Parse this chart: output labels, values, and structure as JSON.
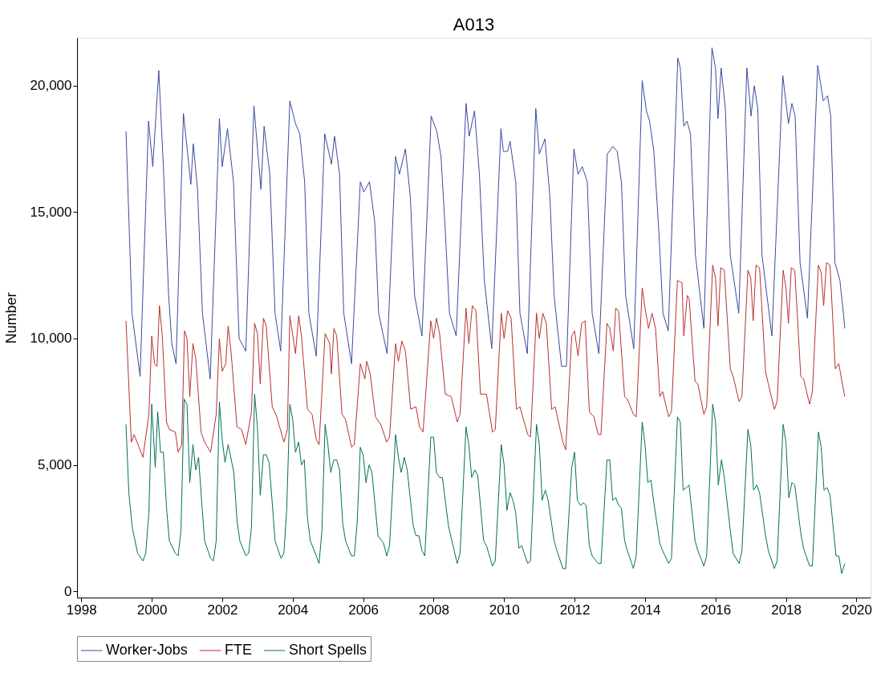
{
  "chart_data": {
    "type": "line",
    "title": "A013",
    "ylabel": "Number",
    "legend": "bottom",
    "grid": false,
    "xlim": [
      1997.88,
      2020.4
    ],
    "xticks": [
      1998,
      2000,
      2002,
      2004,
      2006,
      2008,
      2010,
      2012,
      2014,
      2016,
      2018,
      2020
    ],
    "ylim": [
      -250,
      21900
    ],
    "yticks": [
      0,
      {
        "value": 5000,
        "label": "5,000"
      },
      {
        "value": 10000,
        "label": "10,000"
      },
      {
        "value": 15000,
        "label": "15,000"
      },
      {
        "value": 20000,
        "label": "20,000"
      }
    ],
    "series": [
      {
        "name": "Worker-Jobs",
        "color": "#3b4a9c",
        "x": [
          1999.27,
          1999.44,
          1999.67,
          1999.91,
          2000.03,
          2000.2,
          2000.33,
          2000.48,
          2000.57,
          2000.69,
          2000.9,
          2001.11,
          2001.18,
          2001.3,
          2001.44,
          2001.66,
          2001.92,
          2002.0,
          2002.15,
          2002.32,
          2002.48,
          2002.67,
          2002.9,
          2003.1,
          2003.19,
          2003.35,
          2003.5,
          2003.66,
          2003.92,
          2004.08,
          2004.2,
          2004.34,
          2004.46,
          2004.67,
          2004.91,
          2005.1,
          2005.19,
          2005.33,
          2005.45,
          2005.67,
          2005.92,
          2006.02,
          2006.18,
          2006.33,
          2006.44,
          2006.68,
          2006.92,
          2007.03,
          2007.2,
          2007.34,
          2007.46,
          2007.67,
          2007.93,
          2008.09,
          2008.21,
          2008.33,
          2008.45,
          2008.64,
          2008.92,
          2009.01,
          2009.16,
          2009.3,
          2009.44,
          2009.65,
          2009.91,
          2009.98,
          2010.1,
          2010.17,
          2010.33,
          2010.45,
          2010.66,
          2010.9,
          2011.0,
          2011.16,
          2011.3,
          2011.42,
          2011.63,
          2011.77,
          2011.98,
          2012.1,
          2012.22,
          2012.36,
          2012.5,
          2012.69,
          2012.93,
          2013.09,
          2013.21,
          2013.33,
          2013.45,
          2013.68,
          2013.92,
          2014.04,
          2014.13,
          2014.25,
          2014.39,
          2014.51,
          2014.66,
          2014.93,
          2015.0,
          2015.1,
          2015.19,
          2015.29,
          2015.43,
          2015.67,
          2015.9,
          2016.0,
          2016.07,
          2016.16,
          2016.28,
          2016.42,
          2016.66,
          2016.89,
          2017.01,
          2017.1,
          2017.2,
          2017.32,
          2017.6,
          2017.91,
          2018.07,
          2018.17,
          2018.26,
          2018.4,
          2018.61,
          2018.9,
          2019.06,
          2019.18,
          2019.27,
          2019.39,
          2019.53,
          2019.63,
          2019.67
        ],
        "values": [
          18200,
          11000,
          8500,
          18600,
          16800,
          20600,
          16800,
          11700,
          9800,
          9000,
          18900,
          16100,
          17700,
          15900,
          11000,
          8400,
          18700,
          16800,
          18300,
          16200,
          10000,
          9500,
          19200,
          15900,
          18400,
          16500,
          11000,
          9500,
          19400,
          18500,
          18100,
          16200,
          11000,
          9300,
          18100,
          16900,
          18000,
          16500,
          11000,
          9000,
          16200,
          15800,
          16200,
          14600,
          11000,
          9400,
          17200,
          16500,
          17500,
          15600,
          11700,
          10100,
          18800,
          18200,
          17200,
          14300,
          11000,
          10100,
          19300,
          18000,
          19000,
          16500,
          12300,
          9600,
          18300,
          17400,
          17400,
          17800,
          16200,
          11000,
          9400,
          19100,
          17300,
          17900,
          15600,
          11700,
          8900,
          8900,
          17500,
          16500,
          16800,
          16200,
          11000,
          9400,
          17300,
          17600,
          17400,
          16200,
          11700,
          9600,
          20200,
          19000,
          18600,
          17400,
          14300,
          11000,
          10300,
          21100,
          20700,
          18400,
          18600,
          18100,
          13300,
          10400,
          21500,
          20700,
          18700,
          20700,
          19100,
          13300,
          11000,
          20700,
          18800,
          20000,
          19100,
          13300,
          10100,
          20400,
          18500,
          19300,
          18800,
          13000,
          10800,
          20800,
          19400,
          19600,
          18800,
          13000,
          12300,
          11000,
          10400
        ]
      },
      {
        "name": "FTE",
        "color": "#b8312f",
        "x": [
          1999.27,
          1999.42,
          1999.5,
          1999.75,
          1999.92,
          2000.0,
          2000.08,
          2000.15,
          2000.22,
          2000.3,
          2000.42,
          2000.5,
          2000.67,
          2000.75,
          2000.85,
          2000.93,
          2001.0,
          2001.08,
          2001.17,
          2001.25,
          2001.4,
          2001.5,
          2001.67,
          2001.83,
          2001.92,
          2002.0,
          2002.1,
          2002.17,
          2002.25,
          2002.42,
          2002.55,
          2002.67,
          2002.83,
          2002.92,
          2003.0,
          2003.08,
          2003.17,
          2003.25,
          2003.42,
          2003.55,
          2003.75,
          2003.85,
          2003.92,
          2004.08,
          2004.17,
          2004.25,
          2004.42,
          2004.55,
          2004.67,
          2004.75,
          2004.92,
          2005.05,
          2005.1,
          2005.17,
          2005.25,
          2005.4,
          2005.5,
          2005.67,
          2005.75,
          2005.92,
          2006.05,
          2006.1,
          2006.2,
          2006.35,
          2006.5,
          2006.67,
          2006.75,
          2006.92,
          2007.0,
          2007.1,
          2007.2,
          2007.35,
          2007.5,
          2007.6,
          2007.7,
          2007.92,
          2008.0,
          2008.08,
          2008.17,
          2008.33,
          2008.5,
          2008.67,
          2008.75,
          2008.92,
          2009.0,
          2009.1,
          2009.2,
          2009.33,
          2009.5,
          2009.67,
          2009.75,
          2009.92,
          2010.0,
          2010.1,
          2010.2,
          2010.35,
          2010.45,
          2010.67,
          2010.75,
          2010.92,
          2011.0,
          2011.1,
          2011.2,
          2011.35,
          2011.45,
          2011.67,
          2011.75,
          2011.92,
          2012.0,
          2012.1,
          2012.2,
          2012.3,
          2012.42,
          2012.55,
          2012.67,
          2012.75,
          2012.92,
          2013.0,
          2013.1,
          2013.17,
          2013.25,
          2013.42,
          2013.5,
          2013.67,
          2013.75,
          2013.92,
          2014.0,
          2014.1,
          2014.2,
          2014.3,
          2014.42,
          2014.5,
          2014.67,
          2014.75,
          2014.92,
          2015.05,
          2015.1,
          2015.2,
          2015.25,
          2015.42,
          2015.5,
          2015.67,
          2015.75,
          2015.92,
          2016.0,
          2016.07,
          2016.15,
          2016.25,
          2016.42,
          2016.5,
          2016.67,
          2016.75,
          2016.92,
          2017.0,
          2017.07,
          2017.15,
          2017.25,
          2017.42,
          2017.5,
          2017.67,
          2017.75,
          2017.92,
          2018.0,
          2018.07,
          2018.15,
          2018.25,
          2018.42,
          2018.5,
          2018.67,
          2018.75,
          2018.92,
          2019.0,
          2019.07,
          2019.15,
          2019.25,
          2019.4,
          2019.5,
          2019.6,
          2019.67
        ],
        "values": [
          10700,
          5900,
          6200,
          5300,
          7000,
          10100,
          9000,
          8900,
          11300,
          10100,
          6700,
          6400,
          6300,
          5500,
          5800,
          10300,
          10000,
          7700,
          9800,
          9200,
          6300,
          5900,
          5500,
          7000,
          10000,
          8700,
          9000,
          10500,
          9500,
          6500,
          6400,
          5800,
          7100,
          10600,
          10200,
          8200,
          10800,
          10500,
          7300,
          6900,
          5900,
          6400,
          10900,
          9400,
          10900,
          10100,
          7200,
          7000,
          6000,
          5800,
          10200,
          9800,
          8600,
          10400,
          10100,
          7000,
          6800,
          5700,
          5800,
          9000,
          8400,
          9100,
          8600,
          6900,
          6600,
          5900,
          6100,
          9800,
          9100,
          9900,
          9500,
          7200,
          7300,
          6500,
          6300,
          10700,
          10000,
          10800,
          10200,
          7800,
          7700,
          6700,
          7000,
          11200,
          9800,
          11300,
          11100,
          7800,
          7800,
          6300,
          6400,
          11000,
          10000,
          11100,
          10800,
          7200,
          7300,
          6200,
          6100,
          11000,
          10000,
          11000,
          10600,
          7200,
          7300,
          5900,
          5600,
          10100,
          10300,
          9300,
          10600,
          10700,
          7100,
          6900,
          6200,
          6200,
          10600,
          10400,
          9500,
          11200,
          11100,
          7700,
          7600,
          7000,
          6900,
          12000,
          11200,
          10400,
          11000,
          10400,
          7700,
          7900,
          6900,
          7100,
          12300,
          12200,
          10100,
          11700,
          11600,
          8300,
          8200,
          7000,
          7300,
          12900,
          12400,
          10500,
          12800,
          12700,
          8800,
          8500,
          7500,
          7700,
          12700,
          12400,
          10700,
          12900,
          12800,
          8700,
          8200,
          7200,
          7500,
          12700,
          12000,
          10600,
          12800,
          12700,
          8500,
          8400,
          7400,
          7900,
          12900,
          12600,
          11300,
          13000,
          12900,
          8800,
          9000,
          8200,
          7700
        ]
      },
      {
        "name": "Short Spells",
        "color": "#00705a",
        "x": [
          1999.27,
          1999.35,
          1999.45,
          1999.6,
          1999.75,
          1999.83,
          1999.92,
          2000.0,
          2000.1,
          2000.17,
          2000.25,
          2000.33,
          2000.42,
          2000.5,
          2000.67,
          2000.75,
          2000.83,
          2000.92,
          2001.0,
          2001.08,
          2001.17,
          2001.25,
          2001.33,
          2001.42,
          2001.5,
          2001.67,
          2001.75,
          2001.83,
          2001.92,
          2002.0,
          2002.08,
          2002.17,
          2002.33,
          2002.42,
          2002.5,
          2002.67,
          2002.75,
          2002.83,
          2002.92,
          2003.0,
          2003.08,
          2003.17,
          2003.25,
          2003.33,
          2003.42,
          2003.5,
          2003.67,
          2003.75,
          2003.83,
          2003.92,
          2004.0,
          2004.08,
          2004.17,
          2004.25,
          2004.33,
          2004.42,
          2004.5,
          2004.67,
          2004.75,
          2004.83,
          2004.92,
          2005.0,
          2005.08,
          2005.17,
          2005.25,
          2005.33,
          2005.42,
          2005.5,
          2005.67,
          2005.75,
          2005.83,
          2005.92,
          2006.0,
          2006.08,
          2006.17,
          2006.25,
          2006.42,
          2006.58,
          2006.67,
          2006.75,
          2006.92,
          2007.0,
          2007.08,
          2007.17,
          2007.25,
          2007.42,
          2007.5,
          2007.58,
          2007.67,
          2007.75,
          2007.92,
          2008.0,
          2008.08,
          2008.17,
          2008.25,
          2008.42,
          2008.5,
          2008.67,
          2008.75,
          2008.92,
          2009.0,
          2009.08,
          2009.17,
          2009.25,
          2009.42,
          2009.5,
          2009.67,
          2009.75,
          2009.92,
          2010.0,
          2010.08,
          2010.17,
          2010.25,
          2010.33,
          2010.42,
          2010.5,
          2010.67,
          2010.75,
          2010.92,
          2011.0,
          2011.08,
          2011.17,
          2011.25,
          2011.42,
          2011.5,
          2011.67,
          2011.75,
          2011.92,
          2012.0,
          2012.08,
          2012.17,
          2012.25,
          2012.33,
          2012.42,
          2012.5,
          2012.67,
          2012.75,
          2012.92,
          2013.0,
          2013.08,
          2013.17,
          2013.25,
          2013.33,
          2013.42,
          2013.5,
          2013.67,
          2013.75,
          2013.92,
          2014.0,
          2014.08,
          2014.17,
          2014.25,
          2014.42,
          2014.5,
          2014.67,
          2014.75,
          2014.92,
          2015.0,
          2015.08,
          2015.17,
          2015.25,
          2015.42,
          2015.5,
          2015.67,
          2015.75,
          2015.92,
          2016.0,
          2016.08,
          2016.17,
          2016.25,
          2016.42,
          2016.5,
          2016.67,
          2016.75,
          2016.92,
          2017.0,
          2017.08,
          2017.17,
          2017.25,
          2017.42,
          2017.5,
          2017.67,
          2017.75,
          2017.92,
          2018.0,
          2018.08,
          2018.17,
          2018.25,
          2018.42,
          2018.5,
          2018.67,
          2018.75,
          2018.92,
          2019.0,
          2019.08,
          2019.17,
          2019.25,
          2019.42,
          2019.5,
          2019.58,
          2019.67
        ],
        "values": [
          6600,
          3900,
          2500,
          1500,
          1200,
          1500,
          3100,
          7400,
          4900,
          7100,
          5500,
          5500,
          3300,
          2000,
          1500,
          1400,
          2400,
          7600,
          7400,
          4300,
          5800,
          4800,
          5300,
          3500,
          2000,
          1300,
          1200,
          2000,
          7500,
          6000,
          5100,
          5800,
          4700,
          2800,
          2000,
          1400,
          1500,
          2500,
          7800,
          6500,
          3800,
          5400,
          5400,
          5100,
          3500,
          2000,
          1300,
          1500,
          3200,
          7400,
          6800,
          5500,
          5900,
          5000,
          5200,
          2900,
          2000,
          1400,
          1100,
          2400,
          6600,
          5800,
          4700,
          5200,
          5200,
          4800,
          2700,
          2000,
          1400,
          1400,
          2700,
          5700,
          5400,
          4300,
          5000,
          4700,
          2200,
          1900,
          1400,
          1800,
          6200,
          5300,
          4700,
          5300,
          4800,
          2600,
          2200,
          2200,
          1600,
          1400,
          6100,
          6100,
          4700,
          4500,
          4500,
          2600,
          2100,
          1100,
          1500,
          6500,
          5800,
          4500,
          4800,
          4600,
          2000,
          1800,
          1000,
          1200,
          5800,
          5000,
          3200,
          3900,
          3600,
          3100,
          1700,
          1800,
          1100,
          1200,
          6600,
          5800,
          3600,
          4000,
          3600,
          2000,
          1600,
          900,
          900,
          4900,
          5500,
          3600,
          3400,
          3500,
          3400,
          1800,
          1400,
          1100,
          1100,
          5200,
          5200,
          3600,
          3700,
          3400,
          3300,
          2000,
          1600,
          900,
          1400,
          6700,
          5800,
          4300,
          4400,
          3500,
          1900,
          1600,
          1100,
          1300,
          6900,
          6700,
          4000,
          4100,
          4200,
          2000,
          1600,
          1000,
          1400,
          7400,
          6700,
          4200,
          5200,
          4500,
          2400,
          1500,
          1100,
          1600,
          6400,
          5800,
          4000,
          4200,
          3900,
          2200,
          1600,
          900,
          1200,
          6600,
          5900,
          3700,
          4300,
          4200,
          2300,
          1700,
          1000,
          1000,
          6300,
          5700,
          4000,
          4100,
          3800,
          1400,
          1400,
          700,
          1100
        ]
      }
    ]
  }
}
